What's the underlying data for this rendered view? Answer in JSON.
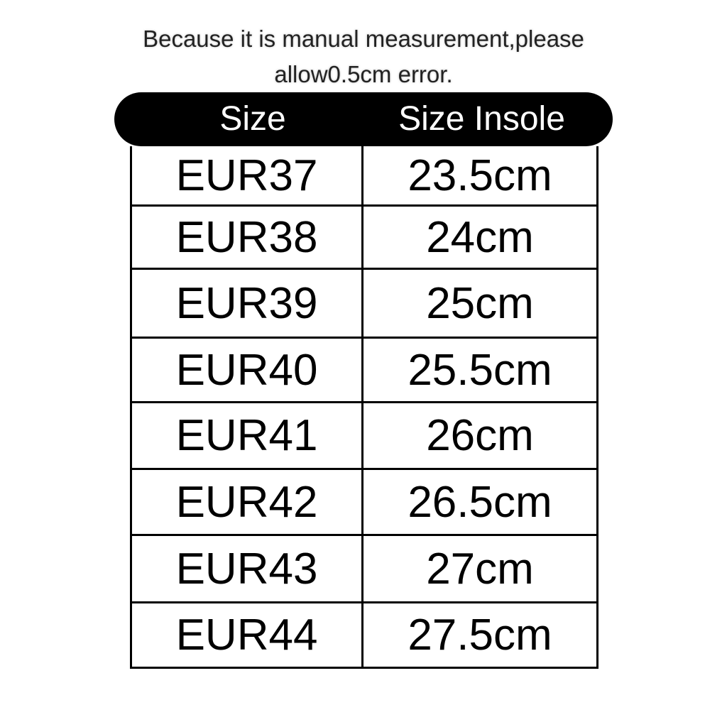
{
  "note": {
    "line1": "Because it is manual measurement,please",
    "line2": "allow0.5cm error."
  },
  "table": {
    "headers": [
      "Size",
      "Size Insole"
    ],
    "rows": [
      [
        "EUR37",
        "23.5cm"
      ],
      [
        "EUR38",
        "24cm"
      ],
      [
        "EUR39",
        "25cm"
      ],
      [
        "EUR40",
        "25.5cm"
      ],
      [
        "EUR41",
        "26cm"
      ],
      [
        "EUR42",
        "26.5cm"
      ],
      [
        "EUR43",
        "27cm"
      ],
      [
        "EUR44",
        "27.5cm"
      ]
    ]
  }
}
